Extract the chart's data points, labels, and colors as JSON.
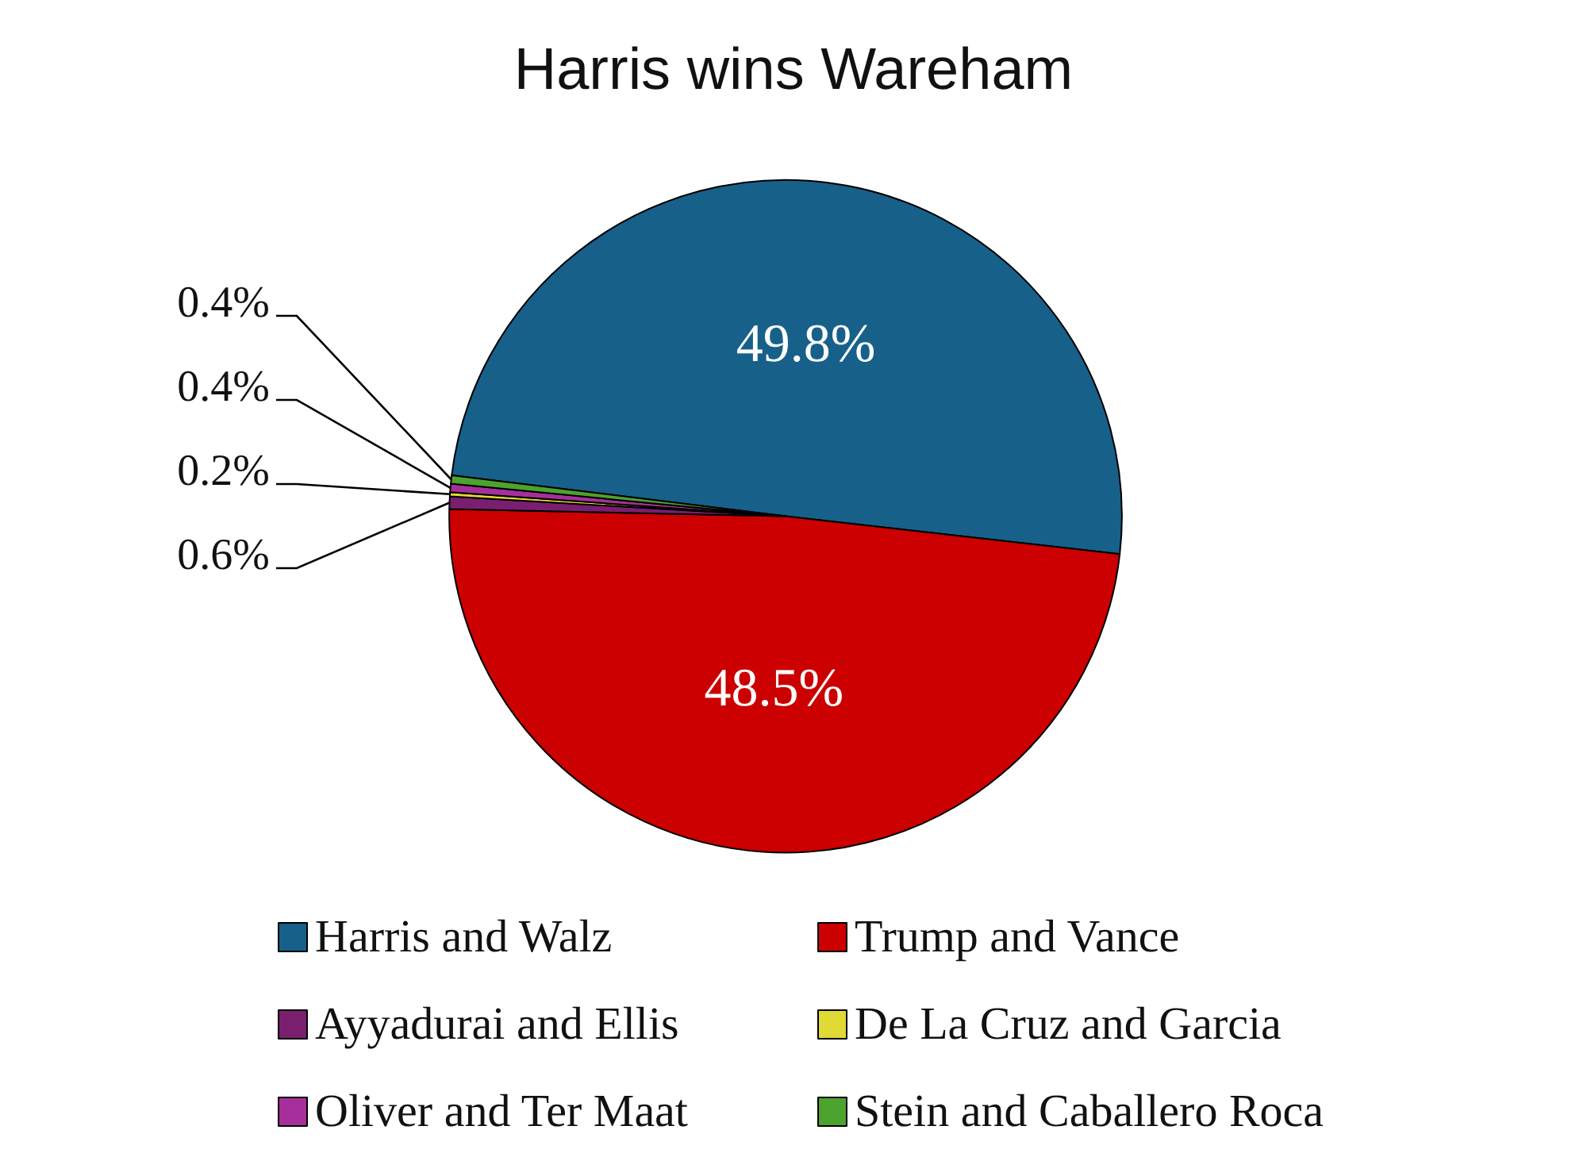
{
  "chart_data": {
    "type": "pie",
    "title": "Harris wins Wareham",
    "categories": [
      "Harris and Walz",
      "Trump and Vance",
      "Ayyadurai and Ellis",
      "De La Cruz and Garcia",
      "Oliver and Ter Maat",
      "Stein and Caballero Roca"
    ],
    "values": [
      49.8,
      48.5,
      0.6,
      0.2,
      0.4,
      0.4
    ],
    "colors": [
      "#17608a",
      "#cc0000",
      "#7a1f6f",
      "#e1d935",
      "#a62f9c",
      "#4ca32e"
    ],
    "value_labels": [
      "49.8%",
      "48.5%",
      "0.6%",
      "0.2%",
      "0.4%",
      "0.4%"
    ],
    "legend": "bottom"
  }
}
